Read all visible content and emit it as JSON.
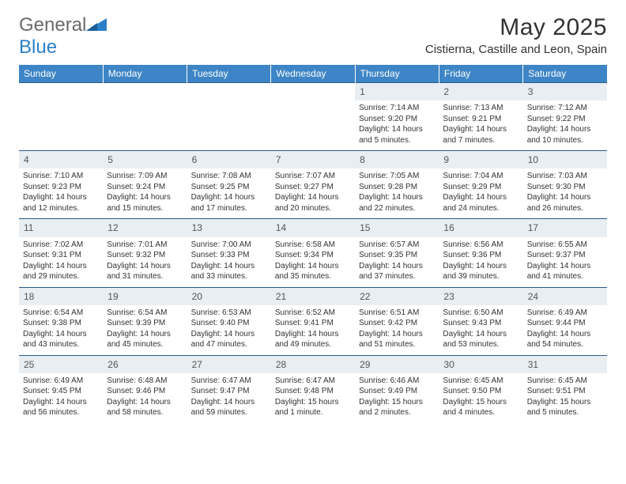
{
  "brand": {
    "text_a": "General",
    "text_b": "Blue"
  },
  "title": "May 2025",
  "location": "Cistierna, Castille and Leon, Spain",
  "colors": {
    "header_bg": "#3d85c6",
    "header_text": "#ffffff",
    "daynum_bg": "#e8eef2",
    "border": "#2b5a88",
    "body_text": "#333333",
    "logo_gray": "#6a6a6a",
    "logo_blue": "#2b7fc9"
  },
  "day_headers": [
    "Sunday",
    "Monday",
    "Tuesday",
    "Wednesday",
    "Thursday",
    "Friday",
    "Saturday"
  ],
  "weeks": [
    {
      "nums": [
        "",
        "",
        "",
        "",
        "1",
        "2",
        "3"
      ],
      "cells": [
        null,
        null,
        null,
        null,
        {
          "sunrise": "Sunrise: 7:14 AM",
          "sunset": "Sunset: 9:20 PM",
          "daylight": "Daylight: 14 hours and 5 minutes."
        },
        {
          "sunrise": "Sunrise: 7:13 AM",
          "sunset": "Sunset: 9:21 PM",
          "daylight": "Daylight: 14 hours and 7 minutes."
        },
        {
          "sunrise": "Sunrise: 7:12 AM",
          "sunset": "Sunset: 9:22 PM",
          "daylight": "Daylight: 14 hours and 10 minutes."
        }
      ]
    },
    {
      "nums": [
        "4",
        "5",
        "6",
        "7",
        "8",
        "9",
        "10"
      ],
      "cells": [
        {
          "sunrise": "Sunrise: 7:10 AM",
          "sunset": "Sunset: 9:23 PM",
          "daylight": "Daylight: 14 hours and 12 minutes."
        },
        {
          "sunrise": "Sunrise: 7:09 AM",
          "sunset": "Sunset: 9:24 PM",
          "daylight": "Daylight: 14 hours and 15 minutes."
        },
        {
          "sunrise": "Sunrise: 7:08 AM",
          "sunset": "Sunset: 9:25 PM",
          "daylight": "Daylight: 14 hours and 17 minutes."
        },
        {
          "sunrise": "Sunrise: 7:07 AM",
          "sunset": "Sunset: 9:27 PM",
          "daylight": "Daylight: 14 hours and 20 minutes."
        },
        {
          "sunrise": "Sunrise: 7:05 AM",
          "sunset": "Sunset: 9:28 PM",
          "daylight": "Daylight: 14 hours and 22 minutes."
        },
        {
          "sunrise": "Sunrise: 7:04 AM",
          "sunset": "Sunset: 9:29 PM",
          "daylight": "Daylight: 14 hours and 24 minutes."
        },
        {
          "sunrise": "Sunrise: 7:03 AM",
          "sunset": "Sunset: 9:30 PM",
          "daylight": "Daylight: 14 hours and 26 minutes."
        }
      ]
    },
    {
      "nums": [
        "11",
        "12",
        "13",
        "14",
        "15",
        "16",
        "17"
      ],
      "cells": [
        {
          "sunrise": "Sunrise: 7:02 AM",
          "sunset": "Sunset: 9:31 PM",
          "daylight": "Daylight: 14 hours and 29 minutes."
        },
        {
          "sunrise": "Sunrise: 7:01 AM",
          "sunset": "Sunset: 9:32 PM",
          "daylight": "Daylight: 14 hours and 31 minutes."
        },
        {
          "sunrise": "Sunrise: 7:00 AM",
          "sunset": "Sunset: 9:33 PM",
          "daylight": "Daylight: 14 hours and 33 minutes."
        },
        {
          "sunrise": "Sunrise: 6:58 AM",
          "sunset": "Sunset: 9:34 PM",
          "daylight": "Daylight: 14 hours and 35 minutes."
        },
        {
          "sunrise": "Sunrise: 6:57 AM",
          "sunset": "Sunset: 9:35 PM",
          "daylight": "Daylight: 14 hours and 37 minutes."
        },
        {
          "sunrise": "Sunrise: 6:56 AM",
          "sunset": "Sunset: 9:36 PM",
          "daylight": "Daylight: 14 hours and 39 minutes."
        },
        {
          "sunrise": "Sunrise: 6:55 AM",
          "sunset": "Sunset: 9:37 PM",
          "daylight": "Daylight: 14 hours and 41 minutes."
        }
      ]
    },
    {
      "nums": [
        "18",
        "19",
        "20",
        "21",
        "22",
        "23",
        "24"
      ],
      "cells": [
        {
          "sunrise": "Sunrise: 6:54 AM",
          "sunset": "Sunset: 9:38 PM",
          "daylight": "Daylight: 14 hours and 43 minutes."
        },
        {
          "sunrise": "Sunrise: 6:54 AM",
          "sunset": "Sunset: 9:39 PM",
          "daylight": "Daylight: 14 hours and 45 minutes."
        },
        {
          "sunrise": "Sunrise: 6:53 AM",
          "sunset": "Sunset: 9:40 PM",
          "daylight": "Daylight: 14 hours and 47 minutes."
        },
        {
          "sunrise": "Sunrise: 6:52 AM",
          "sunset": "Sunset: 9:41 PM",
          "daylight": "Daylight: 14 hours and 49 minutes."
        },
        {
          "sunrise": "Sunrise: 6:51 AM",
          "sunset": "Sunset: 9:42 PM",
          "daylight": "Daylight: 14 hours and 51 minutes."
        },
        {
          "sunrise": "Sunrise: 6:50 AM",
          "sunset": "Sunset: 9:43 PM",
          "daylight": "Daylight: 14 hours and 53 minutes."
        },
        {
          "sunrise": "Sunrise: 6:49 AM",
          "sunset": "Sunset: 9:44 PM",
          "daylight": "Daylight: 14 hours and 54 minutes."
        }
      ]
    },
    {
      "nums": [
        "25",
        "26",
        "27",
        "28",
        "29",
        "30",
        "31"
      ],
      "cells": [
        {
          "sunrise": "Sunrise: 6:49 AM",
          "sunset": "Sunset: 9:45 PM",
          "daylight": "Daylight: 14 hours and 56 minutes."
        },
        {
          "sunrise": "Sunrise: 6:48 AM",
          "sunset": "Sunset: 9:46 PM",
          "daylight": "Daylight: 14 hours and 58 minutes."
        },
        {
          "sunrise": "Sunrise: 6:47 AM",
          "sunset": "Sunset: 9:47 PM",
          "daylight": "Daylight: 14 hours and 59 minutes."
        },
        {
          "sunrise": "Sunrise: 6:47 AM",
          "sunset": "Sunset: 9:48 PM",
          "daylight": "Daylight: 15 hours and 1 minute."
        },
        {
          "sunrise": "Sunrise: 6:46 AM",
          "sunset": "Sunset: 9:49 PM",
          "daylight": "Daylight: 15 hours and 2 minutes."
        },
        {
          "sunrise": "Sunrise: 6:45 AM",
          "sunset": "Sunset: 9:50 PM",
          "daylight": "Daylight: 15 hours and 4 minutes."
        },
        {
          "sunrise": "Sunrise: 6:45 AM",
          "sunset": "Sunset: 9:51 PM",
          "daylight": "Daylight: 15 hours and 5 minutes."
        }
      ]
    }
  ]
}
